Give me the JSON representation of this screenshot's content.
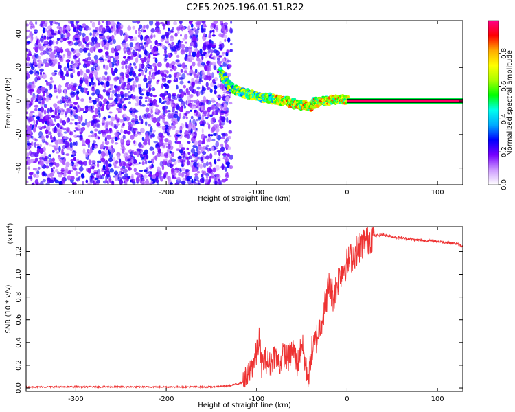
{
  "title": "C2E5.2025.196.01.51.R22",
  "chart_data": [
    {
      "type": "heatmap",
      "xlabel": "Height of straight line (km)",
      "ylabel": "Frequency (Hz)",
      "xlim": [
        -355,
        128
      ],
      "ylim": [
        -50,
        48
      ],
      "x_ticks": [
        -300,
        -200,
        -100,
        0,
        100
      ],
      "x_tick_labels": [
        "-300",
        "-200",
        "-100",
        "0",
        "100"
      ],
      "y_ticks": [
        -40,
        -20,
        0,
        20,
        40
      ],
      "y_tick_labels": [
        "-40",
        "-20",
        "0",
        "20",
        "40"
      ],
      "noise_region_x": [
        -355,
        -128
      ],
      "ridge": [
        {
          "x": -140,
          "y": 18
        },
        {
          "x": -130,
          "y": 9
        },
        {
          "x": -120,
          "y": 6
        },
        {
          "x": -110,
          "y": 4
        },
        {
          "x": -100,
          "y": 3
        },
        {
          "x": -90,
          "y": 2
        },
        {
          "x": -80,
          "y": 1
        },
        {
          "x": -70,
          "y": 0
        },
        {
          "x": -60,
          "y": -1.5
        },
        {
          "x": -50,
          "y": -3
        },
        {
          "x": -40,
          "y": -3
        },
        {
          "x": -35,
          "y": -1
        },
        {
          "x": -25,
          "y": 0
        },
        {
          "x": -15,
          "y": 0.5
        },
        {
          "x": -5,
          "y": 1
        },
        {
          "x": 0,
          "y": 1
        }
      ],
      "constant_line": {
        "x_start": 0,
        "x_end": 128,
        "y": 0
      },
      "colorbar": {
        "label": "Normalized spectral amplitude",
        "range": [
          0,
          1
        ],
        "ticks": [
          0.0,
          0.2,
          0.4,
          0.6,
          0.8
        ],
        "tick_labels": [
          "0.0",
          "0.2",
          "0.4",
          "0.6",
          "0.8"
        ],
        "colors": [
          "#ffffff",
          "#cc99ff",
          "#7700ff",
          "#0000ff",
          "#00aaff",
          "#00ffee",
          "#00ff00",
          "#aaff00",
          "#ffff00",
          "#ffaa00",
          "#ff0000",
          "#ff0088"
        ]
      },
      "grid": false
    },
    {
      "type": "line",
      "xlabel": "Height of straight line (km)",
      "ylabel": "SNR (10 * v/v)",
      "y_multiplier": "(x10",
      "y_multiplier_exp": "4",
      "y_multiplier_close": ")",
      "xlim": [
        -355,
        128
      ],
      "ylim": [
        -0.03,
        1.42
      ],
      "x_ticks": [
        -300,
        -200,
        -100,
        0,
        100
      ],
      "x_tick_labels": [
        "-300",
        "-200",
        "-100",
        "0",
        "100"
      ],
      "y_ticks": [
        0.0,
        0.2,
        0.4,
        0.6,
        0.8,
        1.0,
        1.2
      ],
      "y_tick_labels": [
        "0.0",
        "0.2",
        "0.4",
        "0.6",
        "0.8",
        "1.0",
        "1.2"
      ],
      "series": [
        {
          "color": "#ee3333",
          "x": [
            -355,
            -300,
            -250,
            -200,
            -150,
            -130,
            -115,
            -110,
            -105,
            -100,
            -97,
            -95,
            -90,
            -85,
            -80,
            -75,
            -70,
            -65,
            -60,
            -55,
            -50,
            -45,
            -42,
            -40,
            -35,
            -30,
            -25,
            -20,
            -15,
            -10,
            -5,
            0,
            5,
            10,
            20,
            30,
            40,
            50,
            60,
            80,
            100,
            120,
            128
          ],
          "y": [
            0.01,
            0.01,
            0.01,
            0.01,
            0.01,
            0.02,
            0.05,
            0.1,
            0.2,
            0.3,
            0.45,
            0.2,
            0.25,
            0.2,
            0.3,
            0.2,
            0.3,
            0.25,
            0.35,
            0.2,
            0.4,
            0.15,
            0.1,
            0.3,
            0.4,
            0.55,
            0.7,
            0.9,
            0.8,
            0.95,
            1.05,
            1.1,
            1.15,
            1.2,
            1.3,
            1.34,
            1.35,
            1.33,
            1.32,
            1.3,
            1.29,
            1.27,
            1.25
          ]
        }
      ],
      "grid": false
    }
  ]
}
